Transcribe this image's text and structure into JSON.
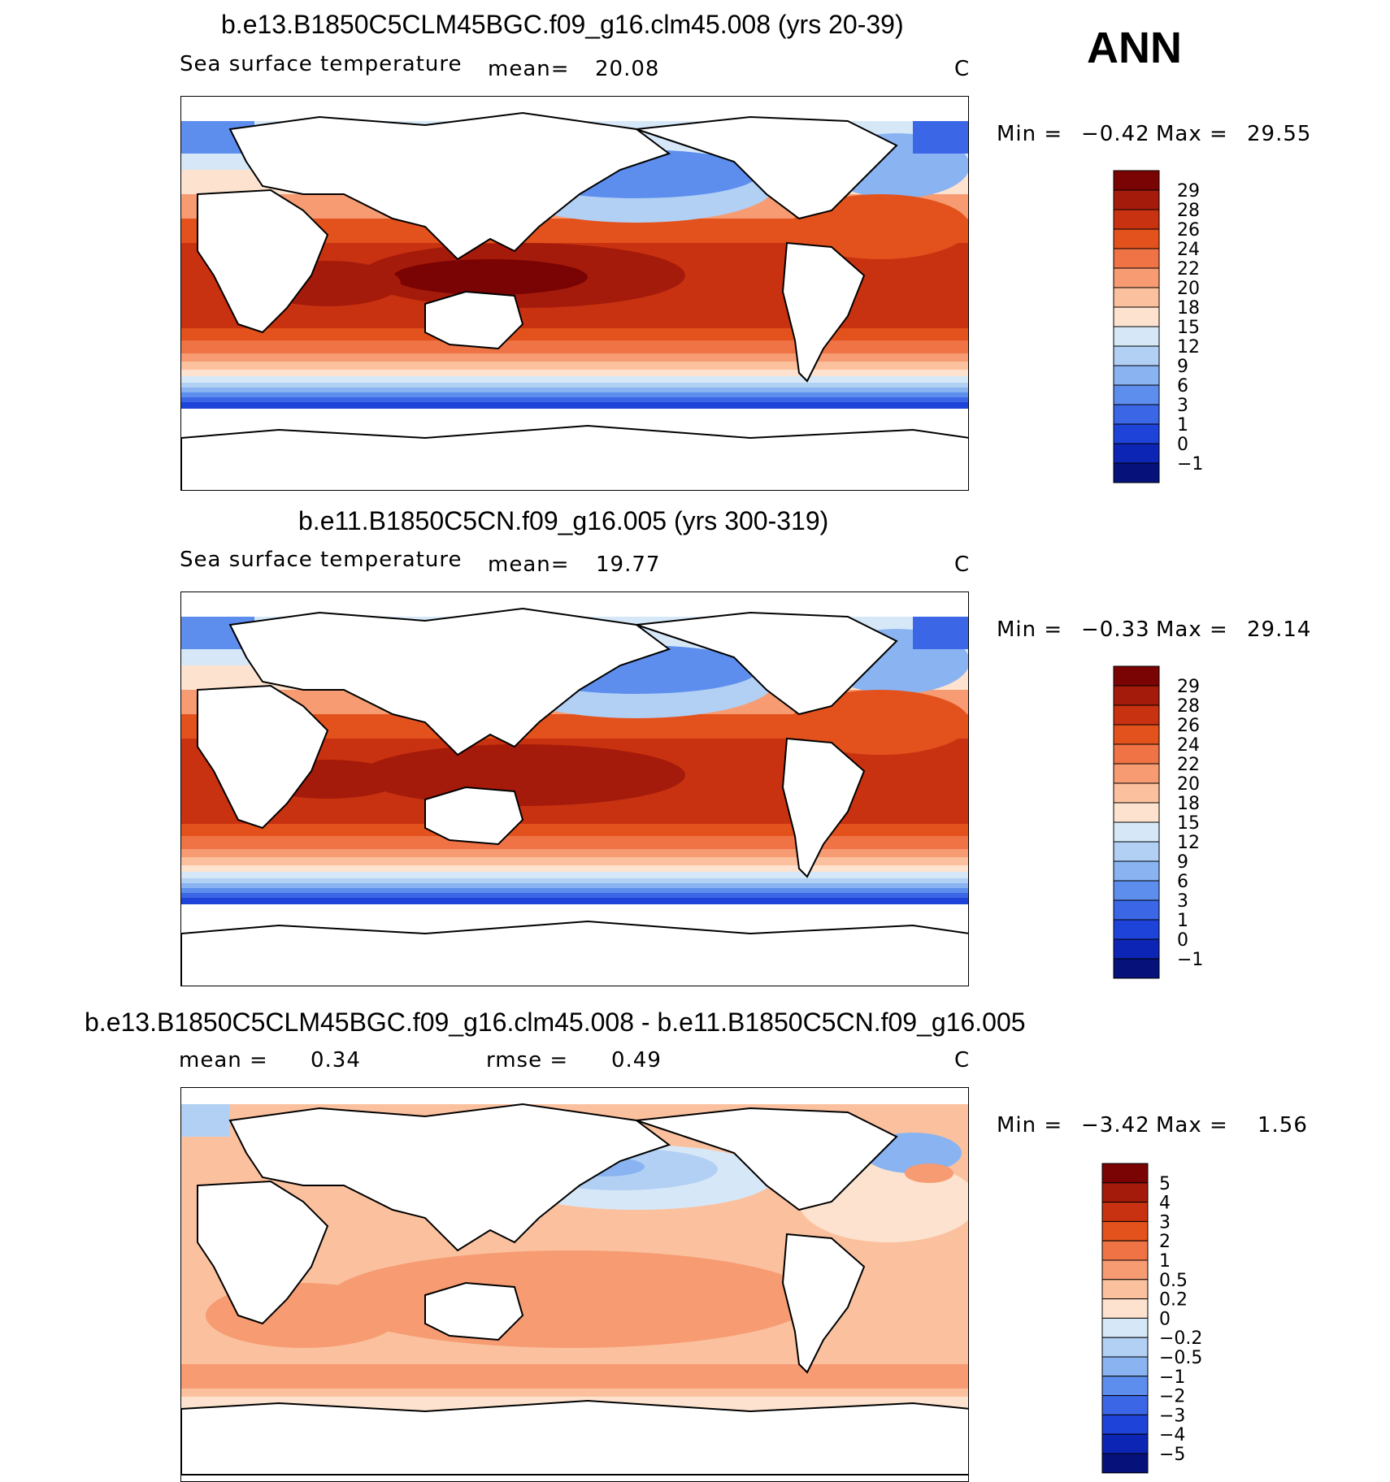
{
  "season": "ANN",
  "panels": [
    {
      "title": "b.e13.B1850C5CLM45BGC.f09_g16.clm45.008 (yrs 20-39)",
      "variable": "Sea surface temperature",
      "stat1_label": "mean=",
      "stat1_value": "20.08",
      "units": "C",
      "min_label": "Min =",
      "min_value": "−0.42",
      "max_label": "Max =",
      "max_value": "29.55",
      "levels": [
        "29",
        "28",
        "26",
        "24",
        "22",
        "20",
        "18",
        "15",
        "12",
        "9",
        "6",
        "3",
        "1",
        "0",
        "−1"
      ],
      "colors": [
        "#7a0403",
        "#a51b0b",
        "#c93210",
        "#e3521c",
        "#f07346",
        "#f69b72",
        "#fbc19f",
        "#fde3cf",
        "#d6e8f7",
        "#b1d0f4",
        "#89b3f1",
        "#5e8eed",
        "#3b66e6",
        "#1e43d8",
        "#0d25b4",
        "#06127a"
      ]
    },
    {
      "title": "b.e11.B1850C5CN.f09_g16.005 (yrs 300-319)",
      "variable": "Sea surface temperature",
      "stat1_label": "mean=",
      "stat1_value": "19.77",
      "units": "C",
      "min_label": "Min =",
      "min_value": "−0.33",
      "max_label": "Max =",
      "max_value": "29.14",
      "levels": [
        "29",
        "28",
        "26",
        "24",
        "22",
        "20",
        "18",
        "15",
        "12",
        "9",
        "6",
        "3",
        "1",
        "0",
        "−1"
      ],
      "colors": [
        "#7a0403",
        "#a51b0b",
        "#c93210",
        "#e3521c",
        "#f07346",
        "#f69b72",
        "#fbc19f",
        "#fde3cf",
        "#d6e8f7",
        "#b1d0f4",
        "#89b3f1",
        "#5e8eed",
        "#3b66e6",
        "#1e43d8",
        "#0d25b4",
        "#06127a"
      ]
    },
    {
      "title": "b.e13.B1850C5CLM45BGC.f09_g16.clm45.008 - b.e11.B1850C5CN.f09_g16.005",
      "stat1_label": "mean =",
      "stat1_value": "0.34",
      "stat2_label": "rmse =",
      "stat2_value": "0.49",
      "units": "C",
      "min_label": "Min =",
      "min_value": "−3.42",
      "max_label": "Max =",
      "max_value": "1.56",
      "levels": [
        "5",
        "4",
        "3",
        "2",
        "1",
        "0.5",
        "0.2",
        "0",
        "−0.2",
        "−0.5",
        "−1",
        "−2",
        "−3",
        "−4",
        "−5"
      ],
      "colors": [
        "#7a0403",
        "#a51b0b",
        "#c93210",
        "#e3521c",
        "#f07346",
        "#f69b72",
        "#fbc19f",
        "#fde3cf",
        "#d6e8f7",
        "#b1d0f4",
        "#89b3f1",
        "#5e8eed",
        "#3b66e6",
        "#1e43d8",
        "#0d25b4",
        "#06127a"
      ]
    }
  ]
}
